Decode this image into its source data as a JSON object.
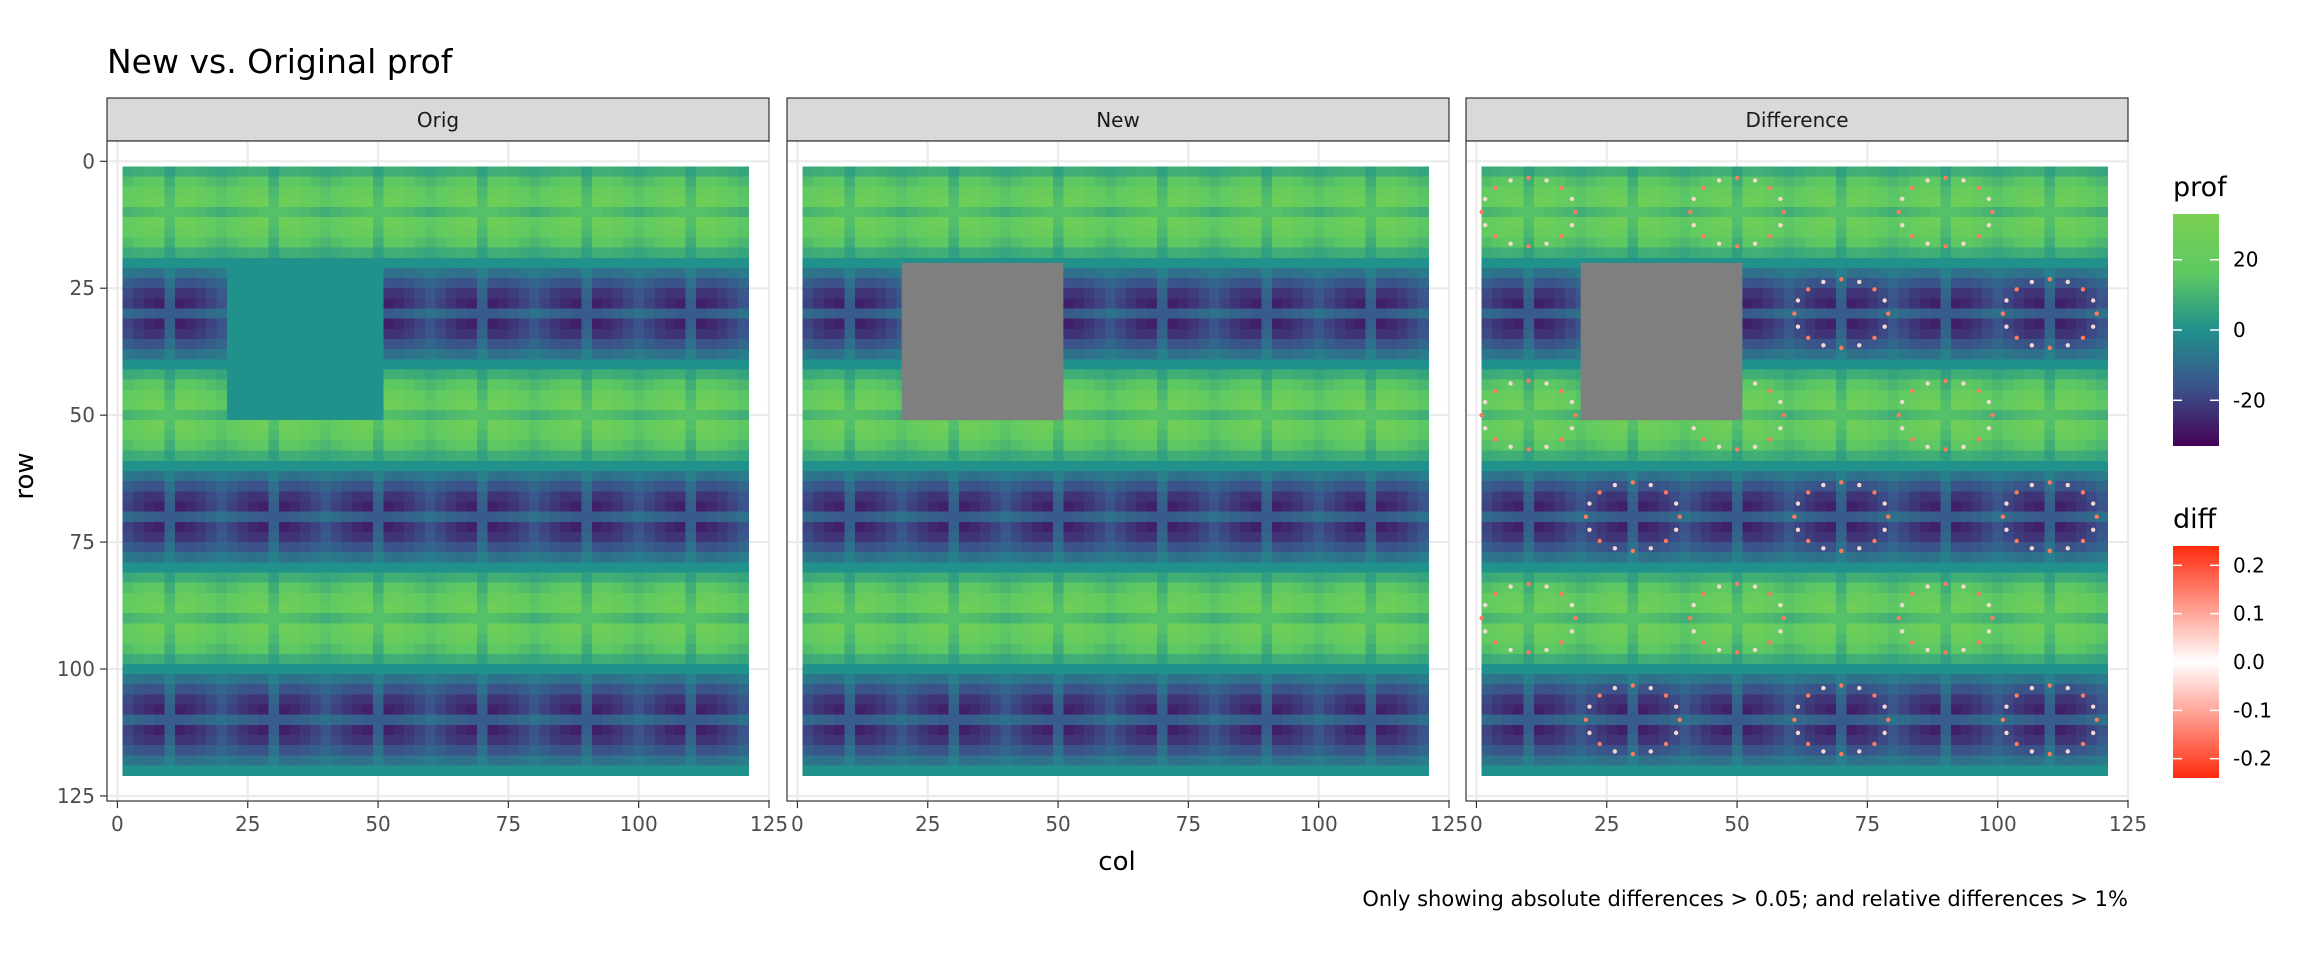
{
  "chart_data": {
    "type": "heatmap",
    "title": "New vs. Original prof",
    "caption": "Only showing absolute differences > 0.05; and relative differences > 1%",
    "xlabel": "col",
    "ylabel": "row",
    "xlim": [
      -2,
      125
    ],
    "ylim": [
      126,
      -4
    ],
    "x_ticks": [
      0,
      25,
      50,
      75,
      100,
      125
    ],
    "x_tick_labels": [
      "0",
      "25",
      "50",
      "75",
      "100",
      "125"
    ],
    "y_ticks": [
      0,
      25,
      50,
      75,
      100,
      125
    ],
    "y_tick_labels": [
      "0",
      "25",
      "50",
      "75",
      "100",
      "125"
    ],
    "grid": true,
    "panels": [
      {
        "name": "Orig",
        "type": "heatmap",
        "fill": "prof",
        "masked_region": null,
        "filled_region": {
          "col": [
            20,
            51
          ],
          "row": [
            20,
            51
          ],
          "prof_value": 0
        }
      },
      {
        "name": "New",
        "type": "heatmap",
        "fill": "prof",
        "masked_region": {
          "col": [
            20,
            51
          ],
          "row": [
            20,
            51
          ]
        },
        "filled_region": null
      },
      {
        "name": "Difference",
        "type": "heatmap",
        "fill": "prof",
        "masked_region": {
          "col": [
            20,
            51
          ],
          "row": [
            20,
            51
          ]
        },
        "overlay": "diff points where |diff| > 0.05"
      }
    ],
    "field": {
      "description": "prof(col,row) periodic pattern, period 40 cells, range approx -33 to 33",
      "period": 40,
      "x_extent": [
        1,
        121
      ],
      "y_extent": [
        1,
        121
      ],
      "node_offset": 10,
      "amplitude": 33
    },
    "legends": [
      {
        "title": "prof",
        "type": "colorbar",
        "palette": "viridis-like",
        "range": [
          -33,
          33
        ],
        "breaks": [
          20,
          0,
          -20
        ],
        "break_labels": [
          "20",
          "0",
          "-20"
        ]
      },
      {
        "title": "diff",
        "type": "colorbar",
        "palette": "red-white-red",
        "range": [
          -0.24,
          0.24
        ],
        "breaks": [
          0.2,
          0.1,
          0.0,
          -0.1,
          -0.2
        ],
        "break_labels": [
          "0.2",
          "0.1",
          "0.0",
          "-0.1",
          "-0.2"
        ]
      }
    ],
    "colors": {
      "masked": "#7f7f7f",
      "grid": "#ebebeb",
      "strip": "#d9d9d9",
      "diff_high": "#ff2b0e",
      "diff_zero": "#ffffff",
      "viridis": [
        "#440154",
        "#3b528b",
        "#21918c",
        "#5ec962",
        "#7ad151"
      ]
    }
  }
}
